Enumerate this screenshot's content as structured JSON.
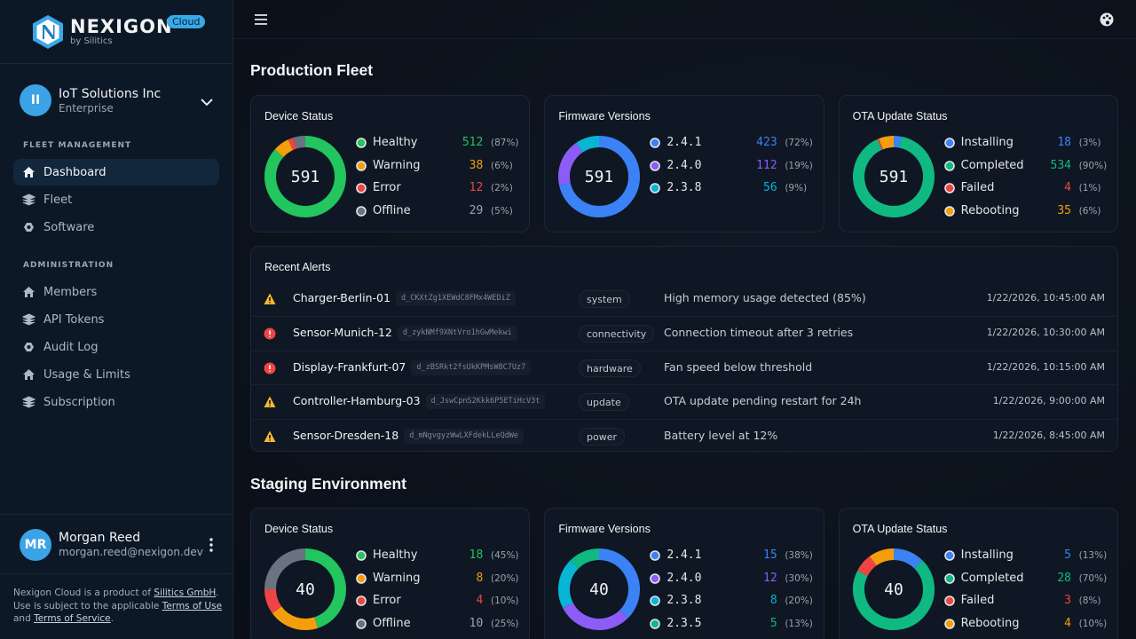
{
  "sidebar": {
    "brand": "NEXIGON",
    "brand_sub": "by Silitics",
    "badge": "Cloud",
    "org": {
      "initials": "II",
      "name": "IoT Solutions Inc",
      "plan": "Enterprise"
    },
    "sections": [
      {
        "title": "FLEET MANAGEMENT",
        "items": [
          {
            "label": "Dashboard",
            "active": true
          },
          {
            "label": "Fleet"
          },
          {
            "label": "Software"
          }
        ]
      },
      {
        "title": "ADMINISTRATION",
        "items": [
          {
            "label": "Members"
          },
          {
            "label": "API Tokens"
          },
          {
            "label": "Audit Log"
          },
          {
            "label": "Usage & Limits"
          },
          {
            "label": "Subscription"
          }
        ]
      }
    ],
    "user": {
      "initials": "MR",
      "name": "Morgan Reed",
      "email": "morgan.reed@nexigon.dev"
    },
    "footer": [
      {
        "text": "Nexigon Cloud is a product of "
      },
      {
        "text": "Silitics GmbH",
        "link": true
      },
      {
        "text": ". Use is subject to the applicable "
      },
      {
        "text": "Terms of Use",
        "link": true
      },
      {
        "text": " and "
      },
      {
        "text": "Terms of Service",
        "link": true
      },
      {
        "text": "."
      }
    ]
  },
  "environments": [
    {
      "title": "Production Fleet",
      "cards": [
        {
          "title": "Device Status",
          "total": 591,
          "mono": false,
          "items": [
            {
              "name": "Healthy",
              "value": 512,
              "share": "(87%)",
              "color": "#22c55e"
            },
            {
              "name": "Warning",
              "value": 38,
              "share": "(6%)",
              "color": "#f59e0b"
            },
            {
              "name": "Error",
              "value": 12,
              "share": "(2%)",
              "color": "#ef4444"
            },
            {
              "name": "Offline",
              "value": 29,
              "share": "(5%)",
              "color": "#6b7280"
            }
          ]
        },
        {
          "title": "Firmware Versions",
          "total": 591,
          "mono": true,
          "items": [
            {
              "name": "2.4.1",
              "value": 423,
              "share": "(72%)",
              "color": "#3b82f6"
            },
            {
              "name": "2.4.0",
              "value": 112,
              "share": "(19%)",
              "color": "#8b5cf6"
            },
            {
              "name": "2.3.8",
              "value": 56,
              "share": "(9%)",
              "color": "#06b6d4"
            }
          ]
        },
        {
          "title": "OTA Update Status",
          "total": 591,
          "mono": false,
          "items": [
            {
              "name": "Installing",
              "value": 18,
              "share": "(3%)",
              "color": "#3b82f6"
            },
            {
              "name": "Completed",
              "value": 534,
              "share": "(90%)",
              "color": "#10b981"
            },
            {
              "name": "Failed",
              "value": 4,
              "share": "(1%)",
              "color": "#ef4444"
            },
            {
              "name": "Rebooting",
              "value": 35,
              "share": "(6%)",
              "color": "#f59e0b"
            }
          ]
        }
      ],
      "alerts": {
        "title": "Recent Alerts",
        "rows": [
          {
            "severity": "warning",
            "device": "Charger-Berlin-01",
            "id": "d_CKXtZg1XEWdC8FMx4WEDiZ",
            "tag": "system",
            "message": "High memory usage detected (85%)",
            "time": "1/22/2026, 10:45:00 AM"
          },
          {
            "severity": "error",
            "device": "Sensor-Munich-12",
            "id": "d_zykNMf9XNtVro1hGwMekwi",
            "tag": "connectivity",
            "message": "Connection timeout after 3 retries",
            "time": "1/22/2026, 10:30:00 AM"
          },
          {
            "severity": "error",
            "device": "Display-Frankfurt-07",
            "id": "d_zBSRkt2fsUkKPMsW8C7Uz7",
            "tag": "hardware",
            "message": "Fan speed below threshold",
            "time": "1/22/2026, 10:15:00 AM"
          },
          {
            "severity": "warning",
            "device": "Controller-Hamburg-03",
            "id": "d_JswCpnS2Kkk6P5ETiHcV3t",
            "tag": "update",
            "message": "OTA update pending restart for 24h",
            "time": "1/22/2026, 9:00:00 AM"
          },
          {
            "severity": "warning",
            "device": "Sensor-Dresden-18",
            "id": "d_mNgvgyzWwLXFdekLLeQdWe",
            "tag": "power",
            "message": "Battery level at 12%",
            "time": "1/22/2026, 8:45:00 AM"
          }
        ]
      }
    },
    {
      "title": "Staging Environment",
      "cards": [
        {
          "title": "Device Status",
          "total": 40,
          "mono": false,
          "items": [
            {
              "name": "Healthy",
              "value": 18,
              "share": "(45%)",
              "color": "#22c55e"
            },
            {
              "name": "Warning",
              "value": 8,
              "share": "(20%)",
              "color": "#f59e0b"
            },
            {
              "name": "Error",
              "value": 4,
              "share": "(10%)",
              "color": "#ef4444"
            },
            {
              "name": "Offline",
              "value": 10,
              "share": "(25%)",
              "color": "#6b7280"
            }
          ]
        },
        {
          "title": "Firmware Versions",
          "total": 40,
          "mono": true,
          "items": [
            {
              "name": "2.4.1",
              "value": 15,
              "share": "(38%)",
              "color": "#3b82f6"
            },
            {
              "name": "2.4.0",
              "value": 12,
              "share": "(30%)",
              "color": "#8b5cf6"
            },
            {
              "name": "2.3.8",
              "value": 8,
              "share": "(20%)",
              "color": "#06b6d4"
            },
            {
              "name": "2.3.5",
              "value": 5,
              "share": "(13%)",
              "color": "#10b981"
            }
          ]
        },
        {
          "title": "OTA Update Status",
          "total": 40,
          "mono": false,
          "items": [
            {
              "name": "Installing",
              "value": 5,
              "share": "(13%)",
              "color": "#3b82f6"
            },
            {
              "name": "Completed",
              "value": 28,
              "share": "(70%)",
              "color": "#10b981"
            },
            {
              "name": "Failed",
              "value": 3,
              "share": "(8%)",
              "color": "#ef4444"
            },
            {
              "name": "Rebooting",
              "value": 4,
              "share": "(10%)",
              "color": "#f59e0b"
            }
          ]
        }
      ]
    }
  ]
}
